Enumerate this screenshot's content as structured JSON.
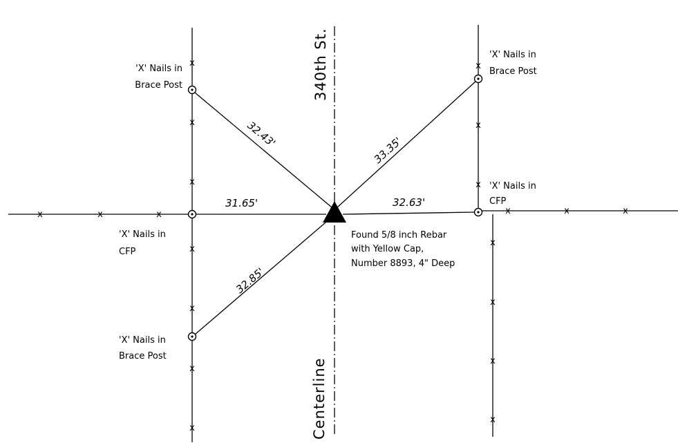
{
  "street_label": "340th St.",
  "centerline_label": "Centerline",
  "monument_note": {
    "line1": "Found 5/8 inch Rebar",
    "line2": "with Yellow Cap,",
    "line3": "Number 8893, 4\" Deep"
  },
  "ties": [
    {
      "id": "nw-brace",
      "distance": "32.43'",
      "note_line1": "'X' Nails in",
      "note_line2": "Brace Post"
    },
    {
      "id": "ne-brace",
      "distance": "33.35'",
      "note_line1": "'X' Nails in",
      "note_line2": "Brace Post"
    },
    {
      "id": "w-cfp",
      "distance": "31.65'",
      "note_line1": "'X' Nails in",
      "note_line2": "CFP"
    },
    {
      "id": "e-cfp",
      "distance": "32.63'",
      "note_line1": "'X' Nails in",
      "note_line2": "CFP"
    },
    {
      "id": "sw-brace",
      "distance": "32.85'",
      "note_line1": "'X' Nails in",
      "note_line2": "Brace Post"
    }
  ],
  "fence_marker": "x"
}
